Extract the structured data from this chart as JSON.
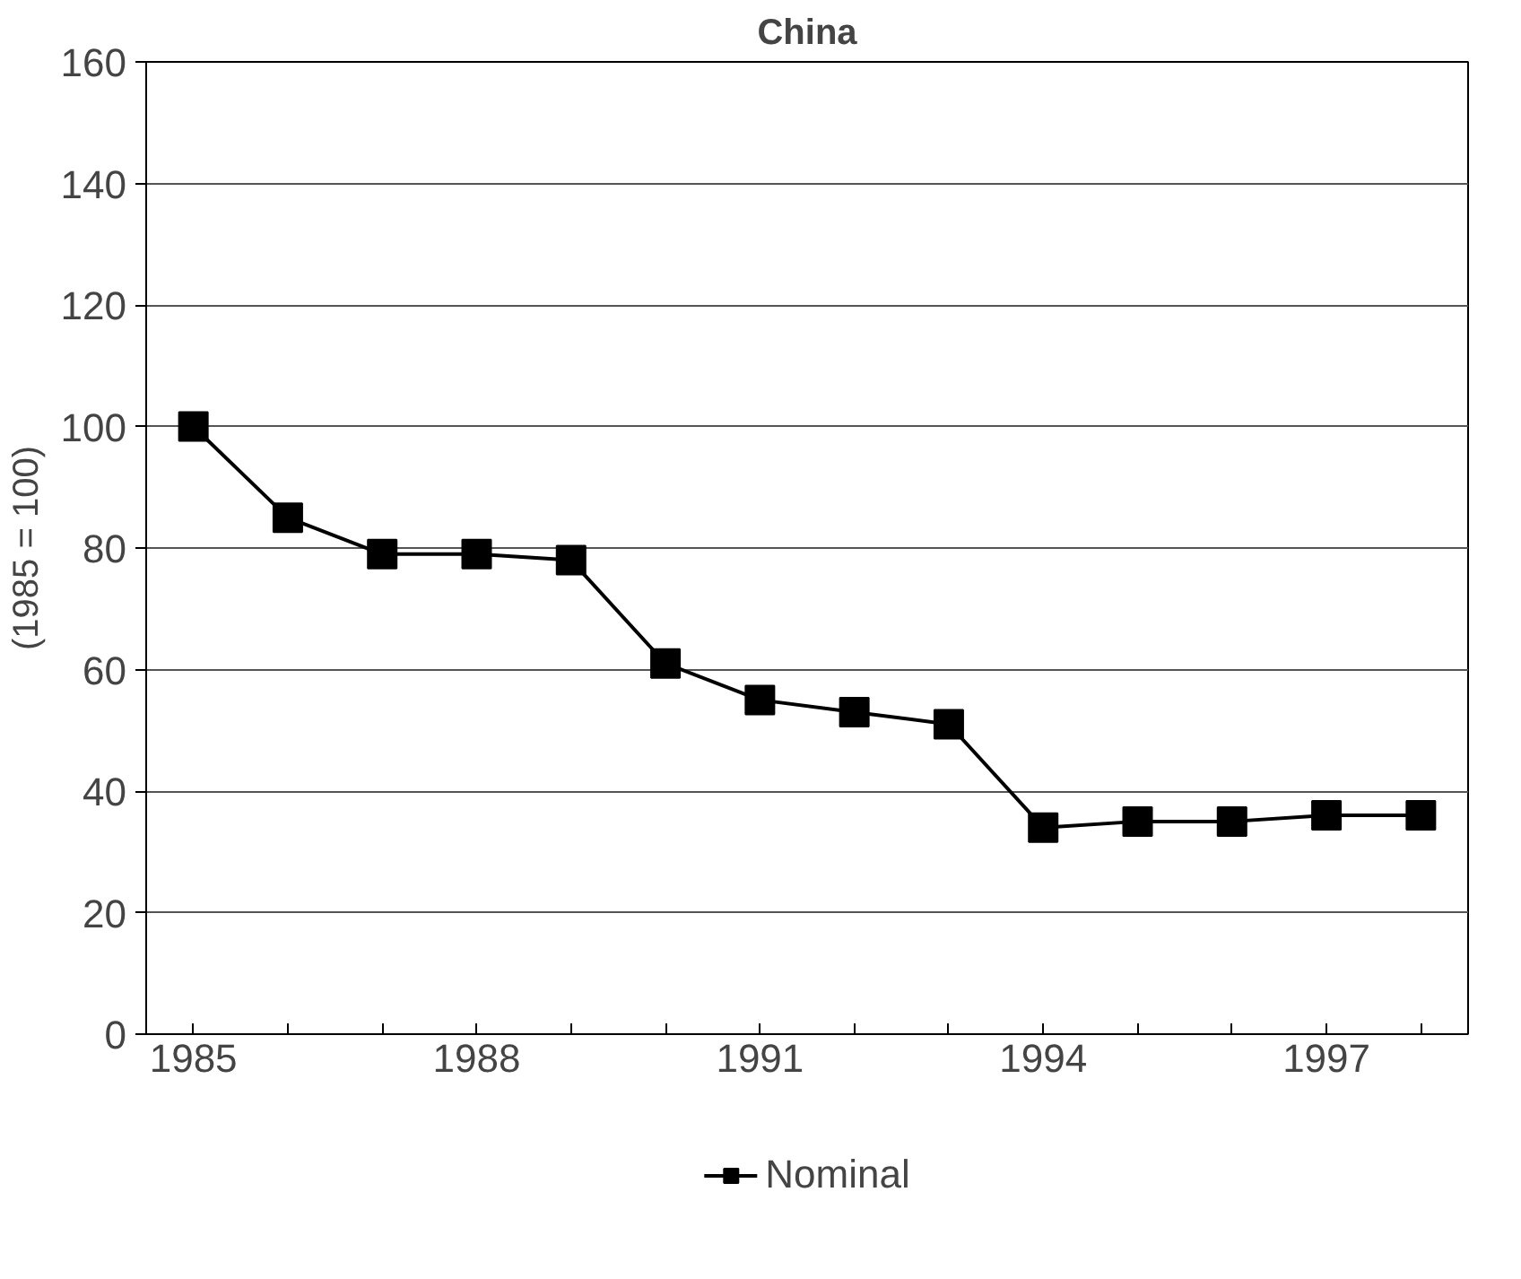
{
  "chart_data": {
    "type": "line",
    "title": "China",
    "ylabel": "(1985 = 100)",
    "x": [
      1985,
      1986,
      1987,
      1988,
      1989,
      1990,
      1991,
      1992,
      1993,
      1994,
      1995,
      1996,
      1997,
      1998
    ],
    "series": [
      {
        "name": "Nominal",
        "color": "#000000",
        "values": [
          100,
          85,
          79,
          79,
          78,
          61,
          55,
          53,
          51,
          34,
          35,
          35,
          36,
          36
        ]
      }
    ],
    "xlim": [
      1984.5,
      1998.5
    ],
    "xticks": [
      1985,
      {
        "value": 1986,
        "label": null
      },
      {
        "value": 1987,
        "label": null
      },
      1988,
      {
        "value": 1989,
        "label": null
      },
      {
        "value": 1990,
        "label": null
      },
      1991,
      {
        "value": 1992,
        "label": null
      },
      {
        "value": 1993,
        "label": null
      },
      1994,
      {
        "value": 1995,
        "label": null
      },
      {
        "value": 1996,
        "label": null
      },
      1997,
      {
        "value": 1998,
        "label": null
      }
    ],
    "ylim": [
      0,
      160
    ],
    "yticks": [
      0,
      20,
      40,
      60,
      80,
      100,
      120,
      140,
      160
    ],
    "grid": "y",
    "legend": "bottom",
    "marker": "square",
    "line_style": "solid"
  }
}
